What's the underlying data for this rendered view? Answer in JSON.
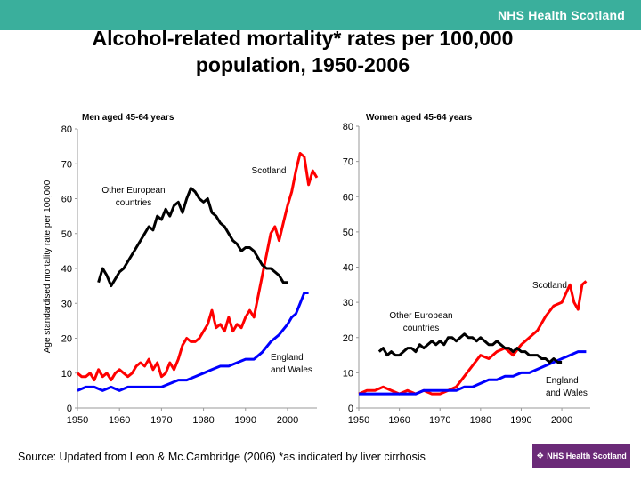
{
  "header": {
    "brand": "NHS Health Scotland",
    "title_line1": "Alcohol-related mortality* rates per 100,000",
    "title_line2": "population,  1950-2006"
  },
  "footer": {
    "source": "Source: Updated from Leon & Mc.Cambridge (2006) *as indicated by liver cirrhosis",
    "badge": "NHS Health Scotland",
    "badge_icon": "nhs-logo-icon"
  },
  "colors": {
    "header_bar": "#3aaf9c",
    "scotland": "#ff0000",
    "england_wales": "#0000ff",
    "other_european": "#000000",
    "badge": "#6b2a78"
  },
  "chart_data": [
    {
      "type": "line",
      "title": "Men aged 45-64 years",
      "ylabel": "Age standardised mortality rate per 100,000",
      "xlim": [
        1950,
        2007
      ],
      "ylim": [
        0,
        80
      ],
      "xticks": [
        1950,
        1960,
        1970,
        1980,
        1990,
        2000
      ],
      "yticks": [
        0,
        10,
        20,
        30,
        40,
        50,
        60,
        70,
        80
      ],
      "grid": false,
      "series": [
        {
          "name": "Scotland",
          "color": "#ff0000",
          "points": [
            [
              1950,
              10
            ],
            [
              1951,
              9
            ],
            [
              1952,
              9
            ],
            [
              1953,
              10
            ],
            [
              1954,
              8
            ],
            [
              1955,
              11
            ],
            [
              1956,
              9
            ],
            [
              1957,
              10
            ],
            [
              1958,
              8
            ],
            [
              1959,
              10
            ],
            [
              1960,
              11
            ],
            [
              1961,
              10
            ],
            [
              1962,
              9
            ],
            [
              1963,
              10
            ],
            [
              1964,
              12
            ],
            [
              1965,
              13
            ],
            [
              1966,
              12
            ],
            [
              1967,
              14
            ],
            [
              1968,
              11
            ],
            [
              1969,
              13
            ],
            [
              1970,
              9
            ],
            [
              1971,
              10
            ],
            [
              1972,
              13
            ],
            [
              1973,
              11
            ],
            [
              1974,
              14
            ],
            [
              1975,
              18
            ],
            [
              1976,
              20
            ],
            [
              1977,
              19
            ],
            [
              1978,
              19
            ],
            [
              1979,
              20
            ],
            [
              1980,
              22
            ],
            [
              1981,
              24
            ],
            [
              1982,
              28
            ],
            [
              1983,
              23
            ],
            [
              1984,
              24
            ],
            [
              1985,
              22
            ],
            [
              1986,
              26
            ],
            [
              1987,
              22
            ],
            [
              1988,
              24
            ],
            [
              1989,
              23
            ],
            [
              1990,
              26
            ],
            [
              1991,
              28
            ],
            [
              1992,
              26
            ],
            [
              1993,
              32
            ],
            [
              1994,
              38
            ],
            [
              1995,
              44
            ],
            [
              1996,
              50
            ],
            [
              1997,
              52
            ],
            [
              1998,
              48
            ],
            [
              1999,
              53
            ],
            [
              2000,
              58
            ],
            [
              2001,
              62
            ],
            [
              2002,
              68
            ],
            [
              2003,
              73
            ],
            [
              2004,
              72
            ],
            [
              2005,
              64
            ],
            [
              2006,
              68
            ],
            [
              2007,
              66
            ]
          ]
        },
        {
          "name": "England and Wales",
          "color": "#0000ff",
          "points": [
            [
              1950,
              5
            ],
            [
              1952,
              6
            ],
            [
              1954,
              6
            ],
            [
              1956,
              5
            ],
            [
              1958,
              6
            ],
            [
              1960,
              5
            ],
            [
              1962,
              6
            ],
            [
              1964,
              6
            ],
            [
              1966,
              6
            ],
            [
              1968,
              6
            ],
            [
              1970,
              6
            ],
            [
              1972,
              7
            ],
            [
              1974,
              8
            ],
            [
              1976,
              8
            ],
            [
              1978,
              9
            ],
            [
              1980,
              10
            ],
            [
              1982,
              11
            ],
            [
              1984,
              12
            ],
            [
              1986,
              12
            ],
            [
              1988,
              13
            ],
            [
              1990,
              14
            ],
            [
              1992,
              14
            ],
            [
              1994,
              16
            ],
            [
              1996,
              19
            ],
            [
              1998,
              21
            ],
            [
              2000,
              24
            ],
            [
              2001,
              26
            ],
            [
              2002,
              27
            ],
            [
              2003,
              30
            ],
            [
              2004,
              33
            ],
            [
              2005,
              33
            ]
          ]
        },
        {
          "name": "Other European countries",
          "color": "#000000",
          "points": [
            [
              1955,
              36
            ],
            [
              1956,
              40
            ],
            [
              1957,
              38
            ],
            [
              1958,
              35
            ],
            [
              1959,
              37
            ],
            [
              1960,
              39
            ],
            [
              1961,
              40
            ],
            [
              1962,
              42
            ],
            [
              1963,
              44
            ],
            [
              1964,
              46
            ],
            [
              1965,
              48
            ],
            [
              1966,
              50
            ],
            [
              1967,
              52
            ],
            [
              1968,
              51
            ],
            [
              1969,
              55
            ],
            [
              1970,
              54
            ],
            [
              1971,
              57
            ],
            [
              1972,
              55
            ],
            [
              1973,
              58
            ],
            [
              1974,
              59
            ],
            [
              1975,
              56
            ],
            [
              1976,
              60
            ],
            [
              1977,
              63
            ],
            [
              1978,
              62
            ],
            [
              1979,
              60
            ],
            [
              1980,
              59
            ],
            [
              1981,
              60
            ],
            [
              1982,
              56
            ],
            [
              1983,
              55
            ],
            [
              1984,
              53
            ],
            [
              1985,
              52
            ],
            [
              1986,
              50
            ],
            [
              1987,
              48
            ],
            [
              1988,
              47
            ],
            [
              1989,
              45
            ],
            [
              1990,
              46
            ],
            [
              1991,
              46
            ],
            [
              1992,
              45
            ],
            [
              1993,
              43
            ],
            [
              1994,
              41
            ],
            [
              1995,
              40
            ],
            [
              1996,
              40
            ],
            [
              1997,
              39
            ],
            [
              1998,
              38
            ],
            [
              1999,
              36
            ],
            [
              2000,
              36
            ]
          ]
        }
      ],
      "annotations": [
        {
          "text": "Scotland",
          "series": "Scotland"
        },
        {
          "text": "Other European countries",
          "lines": [
            "Other European",
            "countries"
          ],
          "series": "Other European countries"
        },
        {
          "text": "England and Wales",
          "lines": [
            "England",
            "and Wales"
          ],
          "series": "England and Wales"
        }
      ]
    },
    {
      "type": "line",
      "title": "Women aged 45-64 years",
      "xlim": [
        1950,
        2007
      ],
      "ylim": [
        0,
        80
      ],
      "xticks": [
        1950,
        1960,
        1970,
        1980,
        1990,
        2000
      ],
      "yticks": [
        0,
        10,
        20,
        30,
        40,
        50,
        60,
        70,
        80
      ],
      "grid": false,
      "series": [
        {
          "name": "Scotland",
          "color": "#ff0000",
          "points": [
            [
              1950,
              4
            ],
            [
              1952,
              5
            ],
            [
              1954,
              5
            ],
            [
              1956,
              6
            ],
            [
              1958,
              5
            ],
            [
              1960,
              4
            ],
            [
              1962,
              5
            ],
            [
              1964,
              4
            ],
            [
              1966,
              5
            ],
            [
              1968,
              4
            ],
            [
              1970,
              4
            ],
            [
              1972,
              5
            ],
            [
              1974,
              6
            ],
            [
              1976,
              9
            ],
            [
              1978,
              12
            ],
            [
              1980,
              15
            ],
            [
              1982,
              14
            ],
            [
              1984,
              16
            ],
            [
              1986,
              17
            ],
            [
              1988,
              15
            ],
            [
              1990,
              18
            ],
            [
              1992,
              20
            ],
            [
              1994,
              22
            ],
            [
              1996,
              26
            ],
            [
              1998,
              29
            ],
            [
              2000,
              30
            ],
            [
              2002,
              35
            ],
            [
              2003,
              30
            ],
            [
              2004,
              28
            ],
            [
              2005,
              35
            ],
            [
              2006,
              36
            ]
          ]
        },
        {
          "name": "England and Wales",
          "color": "#0000ff",
          "points": [
            [
              1950,
              4
            ],
            [
              1952,
              4
            ],
            [
              1954,
              4
            ],
            [
              1956,
              4
            ],
            [
              1958,
              4
            ],
            [
              1960,
              4
            ],
            [
              1962,
              4
            ],
            [
              1964,
              4
            ],
            [
              1966,
              5
            ],
            [
              1968,
              5
            ],
            [
              1970,
              5
            ],
            [
              1972,
              5
            ],
            [
              1974,
              5
            ],
            [
              1976,
              6
            ],
            [
              1978,
              6
            ],
            [
              1980,
              7
            ],
            [
              1982,
              8
            ],
            [
              1984,
              8
            ],
            [
              1986,
              9
            ],
            [
              1988,
              9
            ],
            [
              1990,
              10
            ],
            [
              1992,
              10
            ],
            [
              1994,
              11
            ],
            [
              1996,
              12
            ],
            [
              1998,
              13
            ],
            [
              2000,
              14
            ],
            [
              2002,
              15
            ],
            [
              2004,
              16
            ],
            [
              2006,
              16
            ]
          ]
        },
        {
          "name": "Other European countries",
          "color": "#000000",
          "points": [
            [
              1955,
              16
            ],
            [
              1956,
              17
            ],
            [
              1957,
              15
            ],
            [
              1958,
              16
            ],
            [
              1959,
              15
            ],
            [
              1960,
              15
            ],
            [
              1961,
              16
            ],
            [
              1962,
              17
            ],
            [
              1963,
              17
            ],
            [
              1964,
              16
            ],
            [
              1965,
              18
            ],
            [
              1966,
              17
            ],
            [
              1967,
              18
            ],
            [
              1968,
              19
            ],
            [
              1969,
              18
            ],
            [
              1970,
              19
            ],
            [
              1971,
              18
            ],
            [
              1972,
              20
            ],
            [
              1973,
              20
            ],
            [
              1974,
              19
            ],
            [
              1975,
              20
            ],
            [
              1976,
              21
            ],
            [
              1977,
              20
            ],
            [
              1978,
              20
            ],
            [
              1979,
              19
            ],
            [
              1980,
              20
            ],
            [
              1981,
              19
            ],
            [
              1982,
              18
            ],
            [
              1983,
              18
            ],
            [
              1984,
              19
            ],
            [
              1985,
              18
            ],
            [
              1986,
              17
            ],
            [
              1987,
              17
            ],
            [
              1988,
              16
            ],
            [
              1989,
              17
            ],
            [
              1990,
              16
            ],
            [
              1991,
              16
            ],
            [
              1992,
              15
            ],
            [
              1993,
              15
            ],
            [
              1994,
              15
            ],
            [
              1995,
              14
            ],
            [
              1996,
              14
            ],
            [
              1997,
              13
            ],
            [
              1998,
              14
            ],
            [
              1999,
              13
            ],
            [
              2000,
              13
            ]
          ]
        }
      ],
      "annotations": [
        {
          "text": "Scotland",
          "series": "Scotland"
        },
        {
          "text": "Other European countries",
          "lines": [
            "Other European",
            "countries"
          ],
          "series": "Other European countries"
        },
        {
          "text": "England and Wales",
          "lines": [
            "England",
            "and Wales"
          ],
          "series": "England and Wales"
        }
      ]
    }
  ]
}
